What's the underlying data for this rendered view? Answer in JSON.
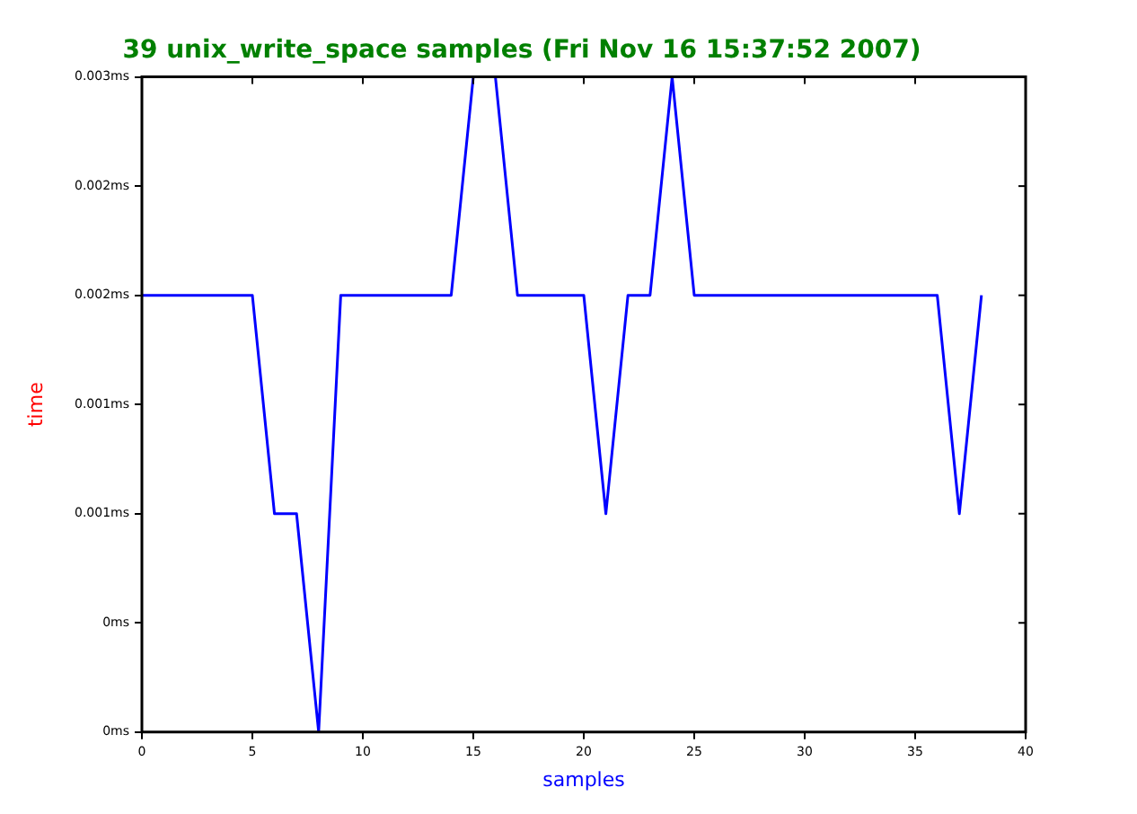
{
  "chart_data": {
    "type": "line",
    "title": "39 unix_write_space samples (Fri Nov 16 15:37:52 2007)",
    "xlabel": "samples",
    "ylabel": "time",
    "x": [
      0,
      1,
      2,
      3,
      4,
      5,
      6,
      7,
      8,
      9,
      10,
      11,
      12,
      13,
      14,
      15,
      16,
      17,
      18,
      19,
      20,
      21,
      22,
      23,
      24,
      25,
      26,
      27,
      28,
      29,
      30,
      31,
      32,
      33,
      34,
      35,
      36,
      37,
      38
    ],
    "series": [
      {
        "color": "#0000ff",
        "values": [
          0.002,
          0.002,
          0.002,
          0.002,
          0.002,
          0.002,
          0.001,
          0.001,
          0,
          0.002,
          0.002,
          0.002,
          0.002,
          0.002,
          0.002,
          0.003,
          0.003,
          0.002,
          0.002,
          0.002,
          0.002,
          0.001,
          0.002,
          0.002,
          0.003,
          0.002,
          0.002,
          0.002,
          0.002,
          0.002,
          0.002,
          0.002,
          0.002,
          0.002,
          0.002,
          0.002,
          0.002,
          0.001,
          0.002
        ]
      }
    ],
    "xlim": [
      0,
      40
    ],
    "xticks": [
      0,
      5,
      10,
      15,
      20,
      25,
      30,
      35,
      40
    ],
    "ylim": [
      0,
      0.003
    ],
    "yticks": [
      {
        "value": 0,
        "label": "0ms"
      },
      {
        "value": 0.0005,
        "label": "0ms"
      },
      {
        "value": 0.001,
        "label": "0.001ms"
      },
      {
        "value": 0.0015,
        "label": "0.001ms"
      },
      {
        "value": 0.002,
        "label": "0.002ms"
      },
      {
        "value": 0.0025,
        "label": "0.002ms"
      },
      {
        "value": 0.003,
        "label": "0.003ms"
      }
    ],
    "grid": false,
    "legend": false,
    "marker": "none",
    "line_style": "solid"
  }
}
